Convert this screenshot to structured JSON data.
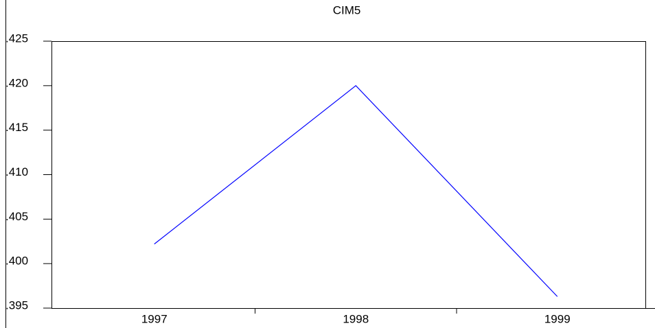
{
  "chart_data": {
    "type": "line",
    "title": "CIM5",
    "categories": [
      "1997",
      "1998",
      "1999"
    ],
    "series": [
      {
        "color": "#0000ff",
        "values": [
          0.4022,
          0.42,
          0.3963
        ]
      }
    ],
    "ylim": [
      0.395,
      0.425
    ],
    "yticks": [
      {
        "value": 0.395,
        "label": ".395"
      },
      {
        "value": 0.4,
        "label": ".400"
      },
      {
        "value": 0.405,
        "label": ".405"
      },
      {
        "value": 0.41,
        "label": ".410"
      },
      {
        "value": 0.415,
        "label": ".415"
      },
      {
        "value": 0.42,
        "label": ".420"
      },
      {
        "value": 0.425,
        "label": ".425"
      }
    ]
  }
}
